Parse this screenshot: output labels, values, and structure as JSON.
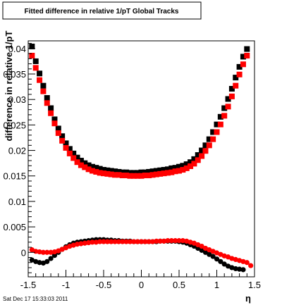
{
  "chart_data": {
    "type": "scatter",
    "title": "Fitted difference in relative 1/pT  Global Tracks",
    "xlabel": "η",
    "ylabel": "difference in relative 1/pT",
    "xlim": [
      -1.5,
      1.5
    ],
    "ylim": [
      -0.0048,
      0.0415
    ],
    "x_ticks": [
      -1.5,
      -1,
      -0.5,
      0,
      0.5,
      1,
      1.5
    ],
    "x_tick_labels": [
      "-1.5",
      "-1",
      "-0.5",
      "0",
      "0.5",
      "1",
      "1.5"
    ],
    "y_ticks": [
      0,
      0.005,
      0.01,
      0.015,
      0.02,
      0.025,
      0.03,
      0.035,
      0.04
    ],
    "y_tick_labels": [
      "0",
      "0.005",
      "0.01",
      "0.015",
      "0.02",
      "0.025",
      "0.03",
      "0.035",
      "0.04"
    ],
    "grid": false,
    "timestamp": "Sat Dec 17 15:33:03 2011",
    "series": [
      {
        "marker": "square",
        "color": "#000000",
        "points": [
          [
            -1.45,
            0.0404
          ],
          [
            -1.4,
            0.0375
          ],
          [
            -1.35,
            0.0351
          ],
          [
            -1.3,
            0.0327
          ],
          [
            -1.25,
            0.0303
          ],
          [
            -1.2,
            0.0283
          ],
          [
            -1.15,
            0.0261
          ],
          [
            -1.1,
            0.0243
          ],
          [
            -1.05,
            0.0228
          ],
          [
            -1.0,
            0.0214
          ],
          [
            -0.95,
            0.0203
          ],
          [
            -0.9,
            0.0194
          ],
          [
            -0.85,
            0.0186
          ],
          [
            -0.8,
            0.018
          ],
          [
            -0.75,
            0.0175
          ],
          [
            -0.7,
            0.0171
          ],
          [
            -0.65,
            0.0168
          ],
          [
            -0.6,
            0.0166
          ],
          [
            -0.55,
            0.0164
          ],
          [
            -0.5,
            0.0162
          ],
          [
            -0.45,
            0.0161
          ],
          [
            -0.4,
            0.016
          ],
          [
            -0.35,
            0.0159
          ],
          [
            -0.3,
            0.0158
          ],
          [
            -0.25,
            0.0157
          ],
          [
            -0.2,
            0.0157
          ],
          [
            -0.15,
            0.0156
          ],
          [
            -0.1,
            0.0156
          ],
          [
            -0.05,
            0.0156
          ],
          [
            0.0,
            0.0157
          ],
          [
            0.05,
            0.0157
          ],
          [
            0.1,
            0.0158
          ],
          [
            0.15,
            0.0159
          ],
          [
            0.2,
            0.016
          ],
          [
            0.25,
            0.0161
          ],
          [
            0.3,
            0.0162
          ],
          [
            0.35,
            0.0163
          ],
          [
            0.4,
            0.0165
          ],
          [
            0.45,
            0.0166
          ],
          [
            0.5,
            0.0168
          ],
          [
            0.55,
            0.017
          ],
          [
            0.6,
            0.0173
          ],
          [
            0.65,
            0.0177
          ],
          [
            0.7,
            0.0183
          ],
          [
            0.75,
            0.0191
          ],
          [
            0.8,
            0.02
          ],
          [
            0.85,
            0.021
          ],
          [
            0.9,
            0.0222
          ],
          [
            0.95,
            0.0236
          ],
          [
            1.0,
            0.0251
          ],
          [
            1.05,
            0.0266
          ],
          [
            1.1,
            0.0283
          ],
          [
            1.15,
            0.0301
          ],
          [
            1.2,
            0.0321
          ],
          [
            1.25,
            0.0343
          ],
          [
            1.3,
            0.0364
          ],
          [
            1.35,
            0.0384
          ],
          [
            1.4,
            0.0399
          ]
        ]
      },
      {
        "marker": "square",
        "color": "#ff0000",
        "points": [
          [
            -1.45,
            0.0386
          ],
          [
            -1.4,
            0.0362
          ],
          [
            -1.35,
            0.0338
          ],
          [
            -1.3,
            0.0316
          ],
          [
            -1.25,
            0.0293
          ],
          [
            -1.2,
            0.0273
          ],
          [
            -1.15,
            0.0253
          ],
          [
            -1.1,
            0.0234
          ],
          [
            -1.05,
            0.0219
          ],
          [
            -1.0,
            0.0205
          ],
          [
            -0.95,
            0.0194
          ],
          [
            -0.9,
            0.0185
          ],
          [
            -0.85,
            0.0177
          ],
          [
            -0.8,
            0.0171
          ],
          [
            -0.75,
            0.0167
          ],
          [
            -0.7,
            0.0163
          ],
          [
            -0.65,
            0.016
          ],
          [
            -0.6,
            0.0158
          ],
          [
            -0.55,
            0.0156
          ],
          [
            -0.5,
            0.0155
          ],
          [
            -0.45,
            0.0154
          ],
          [
            -0.4,
            0.0153
          ],
          [
            -0.35,
            0.0152
          ],
          [
            -0.3,
            0.0152
          ],
          [
            -0.25,
            0.0151
          ],
          [
            -0.2,
            0.0151
          ],
          [
            -0.15,
            0.015
          ],
          [
            -0.1,
            0.015
          ],
          [
            -0.05,
            0.015
          ],
          [
            0.0,
            0.015
          ],
          [
            0.05,
            0.0151
          ],
          [
            0.1,
            0.0151
          ],
          [
            0.15,
            0.0152
          ],
          [
            0.2,
            0.0153
          ],
          [
            0.25,
            0.0154
          ],
          [
            0.3,
            0.0155
          ],
          [
            0.35,
            0.0156
          ],
          [
            0.4,
            0.0157
          ],
          [
            0.45,
            0.0159
          ],
          [
            0.5,
            0.016
          ],
          [
            0.55,
            0.0162
          ],
          [
            0.6,
            0.0165
          ],
          [
            0.65,
            0.0169
          ],
          [
            0.7,
            0.0174
          ],
          [
            0.75,
            0.0181
          ],
          [
            0.8,
            0.0189
          ],
          [
            0.85,
            0.0199
          ],
          [
            0.9,
            0.021
          ],
          [
            0.95,
            0.0222
          ],
          [
            1.0,
            0.0236
          ],
          [
            1.05,
            0.0251
          ],
          [
            1.1,
            0.0268
          ],
          [
            1.15,
            0.0286
          ],
          [
            1.2,
            0.0306
          ],
          [
            1.25,
            0.0327
          ],
          [
            1.3,
            0.0349
          ],
          [
            1.35,
            0.0369
          ],
          [
            1.4,
            0.0386
          ]
        ]
      },
      {
        "marker": "circle",
        "color": "#000000",
        "points": [
          [
            -1.45,
            -0.0015
          ],
          [
            -1.4,
            -0.0018
          ],
          [
            -1.35,
            -0.002
          ],
          [
            -1.3,
            -0.0021
          ],
          [
            -1.25,
            -0.0018
          ],
          [
            -1.2,
            -0.0012
          ],
          [
            -1.15,
            -0.0006
          ],
          [
            -1.1,
            0.0
          ],
          [
            -1.05,
            0.0006
          ],
          [
            -1.0,
            0.0011
          ],
          [
            -0.95,
            0.0015
          ],
          [
            -0.9,
            0.0018
          ],
          [
            -0.85,
            0.002
          ],
          [
            -0.8,
            0.0021
          ],
          [
            -0.75,
            0.0022
          ],
          [
            -0.7,
            0.0023
          ],
          [
            -0.65,
            0.0024
          ],
          [
            -0.6,
            0.0025
          ],
          [
            -0.55,
            0.0025
          ],
          [
            -0.5,
            0.0025
          ],
          [
            -0.45,
            0.0024
          ],
          [
            -0.4,
            0.0024
          ],
          [
            -0.35,
            0.0023
          ],
          [
            -0.3,
            0.0023
          ],
          [
            -0.25,
            0.0022
          ],
          [
            -0.2,
            0.0022
          ],
          [
            -0.15,
            0.0022
          ],
          [
            -0.1,
            0.0021
          ],
          [
            -0.05,
            0.0021
          ],
          [
            0.0,
            0.0021
          ],
          [
            0.05,
            0.0021
          ],
          [
            0.1,
            0.0021
          ],
          [
            0.15,
            0.0021
          ],
          [
            0.2,
            0.0021
          ],
          [
            0.25,
            0.0022
          ],
          [
            0.3,
            0.0022
          ],
          [
            0.35,
            0.0022
          ],
          [
            0.4,
            0.0022
          ],
          [
            0.45,
            0.0022
          ],
          [
            0.5,
            0.0021
          ],
          [
            0.55,
            0.002
          ],
          [
            0.6,
            0.0018
          ],
          [
            0.65,
            0.0015
          ],
          [
            0.7,
            0.0012
          ],
          [
            0.75,
            0.0008
          ],
          [
            0.8,
            0.0004
          ],
          [
            0.85,
            0.0
          ],
          [
            0.9,
            -0.0004
          ],
          [
            0.95,
            -0.0008
          ],
          [
            1.0,
            -0.0013
          ],
          [
            1.05,
            -0.0018
          ],
          [
            1.1,
            -0.0023
          ],
          [
            1.15,
            -0.0027
          ],
          [
            1.2,
            -0.003
          ],
          [
            1.25,
            -0.0032
          ],
          [
            1.3,
            -0.0033
          ],
          [
            1.35,
            -0.0034
          ]
        ]
      },
      {
        "marker": "circle",
        "color": "#ff0000",
        "points": [
          [
            -1.45,
            0.0005
          ],
          [
            -1.4,
            0.0002
          ],
          [
            -1.35,
            0.0001
          ],
          [
            -1.3,
            0.0
          ],
          [
            -1.25,
            0.0
          ],
          [
            -1.2,
            0.0
          ],
          [
            -1.15,
            0.0001
          ],
          [
            -1.1,
            0.0003
          ],
          [
            -1.05,
            0.0006
          ],
          [
            -1.0,
            0.0009
          ],
          [
            -0.95,
            0.0012
          ],
          [
            -0.9,
            0.0014
          ],
          [
            -0.85,
            0.0016
          ],
          [
            -0.8,
            0.0017
          ],
          [
            -0.75,
            0.0018
          ],
          [
            -0.7,
            0.0019
          ],
          [
            -0.65,
            0.002
          ],
          [
            -0.6,
            0.002
          ],
          [
            -0.55,
            0.0021
          ],
          [
            -0.5,
            0.0021
          ],
          [
            -0.45,
            0.0021
          ],
          [
            -0.4,
            0.0021
          ],
          [
            -0.35,
            0.0021
          ],
          [
            -0.3,
            0.0021
          ],
          [
            -0.25,
            0.0021
          ],
          [
            -0.2,
            0.0021
          ],
          [
            -0.15,
            0.0021
          ],
          [
            -0.1,
            0.0021
          ],
          [
            -0.05,
            0.0021
          ],
          [
            0.0,
            0.0021
          ],
          [
            0.05,
            0.0021
          ],
          [
            0.1,
            0.0021
          ],
          [
            0.15,
            0.0021
          ],
          [
            0.2,
            0.0022
          ],
          [
            0.25,
            0.0022
          ],
          [
            0.3,
            0.0022
          ],
          [
            0.35,
            0.0023
          ],
          [
            0.4,
            0.0023
          ],
          [
            0.45,
            0.0023
          ],
          [
            0.5,
            0.0023
          ],
          [
            0.55,
            0.0023
          ],
          [
            0.6,
            0.0022
          ],
          [
            0.65,
            0.002
          ],
          [
            0.7,
            0.0018
          ],
          [
            0.75,
            0.0015
          ],
          [
            0.8,
            0.0012
          ],
          [
            0.85,
            0.0008
          ],
          [
            0.9,
            0.0005
          ],
          [
            0.95,
            0.0002
          ],
          [
            1.0,
            -0.0001
          ],
          [
            1.05,
            -0.0004
          ],
          [
            1.1,
            -0.0007
          ],
          [
            1.15,
            -0.0009
          ],
          [
            1.2,
            -0.0012
          ],
          [
            1.25,
            -0.0014
          ],
          [
            1.3,
            -0.0016
          ],
          [
            1.35,
            -0.0018
          ],
          [
            1.4,
            -0.002
          ],
          [
            1.45,
            -0.0026
          ]
        ]
      }
    ]
  }
}
